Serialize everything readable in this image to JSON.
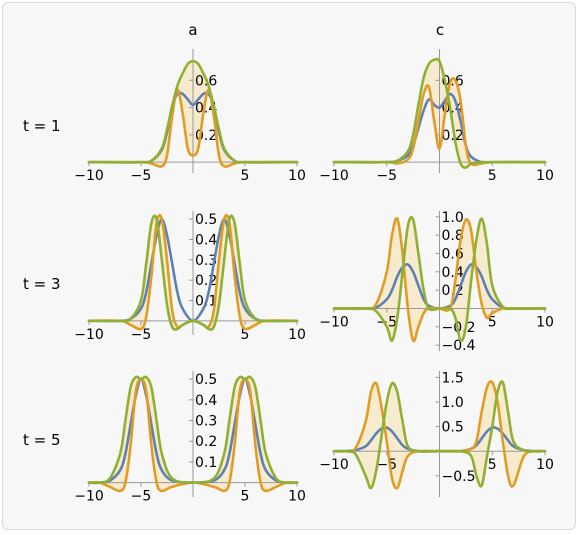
{
  "column_labels": [
    "a",
    "c"
  ],
  "row_labels": [
    "t = 1",
    "t = 3",
    "t = 5"
  ],
  "colors": {
    "blue": "#5e81b5",
    "orange": "#e19c24",
    "green": "#8fb032",
    "fill": "#f6e7c8",
    "axis": "#999999"
  },
  "chart_data": [
    {
      "type": "line",
      "panel": "a",
      "row": "t = 1",
      "xlim": [
        -10,
        10
      ],
      "ylim": [
        -0.05,
        0.8
      ],
      "xticks": [
        -10,
        -5,
        5,
        10
      ],
      "yticks": [
        0.2,
        0.4,
        0.6
      ],
      "xtick_labels": [
        "−10",
        "−5",
        "5",
        "10"
      ],
      "ytick_labels": [
        "0.2",
        "0.4",
        "0.6"
      ],
      "x": [
        -5,
        -4,
        -3,
        -2.5,
        -2,
        -1.5,
        -1,
        -0.5,
        0,
        0.5,
        1,
        1.5,
        2,
        2.5,
        3,
        4,
        5
      ],
      "series": [
        {
          "color": "blue",
          "values": [
            0.0,
            0.01,
            0.09,
            0.22,
            0.41,
            0.5,
            0.5,
            0.46,
            0.42,
            0.46,
            0.5,
            0.5,
            0.41,
            0.22,
            0.09,
            0.01,
            0.0
          ]
        },
        {
          "color": "orange",
          "values": [
            0.0,
            -0.01,
            -0.03,
            0.05,
            0.34,
            0.53,
            0.36,
            0.1,
            0.05,
            0.1,
            0.36,
            0.53,
            0.34,
            0.05,
            -0.03,
            -0.01,
            0.0
          ]
        },
        {
          "color": "green",
          "values": [
            0.0,
            0.01,
            0.1,
            0.24,
            0.41,
            0.56,
            0.65,
            0.72,
            0.74,
            0.72,
            0.65,
            0.56,
            0.41,
            0.24,
            0.1,
            0.01,
            0.0
          ]
        }
      ]
    },
    {
      "type": "line",
      "panel": "c",
      "row": "t = 1",
      "xlim": [
        -10,
        10
      ],
      "ylim": [
        -0.05,
        0.8
      ],
      "xticks": [
        -10,
        -5,
        5,
        10
      ],
      "yticks": [
        0.2,
        0.4,
        0.6
      ],
      "xtick_labels": [
        "−10",
        "−5",
        "5",
        "10"
      ],
      "ytick_labels": [
        "0.2",
        "0.4",
        "0.6"
      ],
      "x": [
        -5,
        -4,
        -3,
        -2.5,
        -2,
        -1.5,
        -1,
        -0.5,
        0,
        0.5,
        1,
        1.5,
        2,
        2.5,
        3,
        4,
        5
      ],
      "series": [
        {
          "color": "blue",
          "values": [
            0.0,
            0.01,
            0.05,
            0.12,
            0.25,
            0.38,
            0.46,
            0.42,
            0.4,
            0.45,
            0.5,
            0.45,
            0.3,
            0.12,
            0.04,
            0.0,
            0.0
          ]
        },
        {
          "color": "orange",
          "values": [
            0.0,
            -0.01,
            0.02,
            0.1,
            0.3,
            0.5,
            0.55,
            0.3,
            0.1,
            0.35,
            0.58,
            0.6,
            0.45,
            0.12,
            -0.01,
            -0.01,
            0.0
          ]
        },
        {
          "color": "green",
          "values": [
            0.0,
            0.01,
            0.08,
            0.2,
            0.42,
            0.62,
            0.72,
            0.75,
            0.74,
            0.6,
            0.4,
            0.15,
            -0.01,
            -0.04,
            -0.01,
            0.0,
            0.0
          ]
        }
      ]
    },
    {
      "type": "line",
      "panel": "a",
      "row": "t = 3",
      "xlim": [
        -10,
        10
      ],
      "ylim": [
        -0.05,
        0.52
      ],
      "xticks": [
        -10,
        -5,
        5,
        10
      ],
      "yticks": [
        0.1,
        0.2,
        0.3,
        0.4,
        0.5
      ],
      "xtick_labels": [
        "−10",
        "−5",
        "5",
        "10"
      ],
      "ytick_labels": [
        "0.1",
        "0.2",
        "0.3",
        "0.4",
        "0.5"
      ],
      "x": [
        -7,
        -6,
        -5,
        -4.5,
        -4,
        -3.5,
        -3,
        -2.5,
        -2,
        -1.5,
        -1,
        0,
        1,
        1.5,
        2,
        2.5,
        3,
        3.5,
        4,
        4.5,
        5,
        6,
        7
      ],
      "series": [
        {
          "color": "blue",
          "values": [
            0.0,
            0.01,
            0.06,
            0.14,
            0.28,
            0.42,
            0.5,
            0.42,
            0.28,
            0.14,
            0.06,
            0.0,
            0.06,
            0.14,
            0.28,
            0.42,
            0.5,
            0.42,
            0.28,
            0.14,
            0.06,
            0.01,
            0.0
          ]
        },
        {
          "color": "orange",
          "values": [
            0.0,
            -0.02,
            -0.04,
            0.02,
            0.22,
            0.48,
            0.5,
            0.3,
            0.05,
            -0.03,
            -0.02,
            0.0,
            -0.02,
            -0.03,
            0.05,
            0.3,
            0.5,
            0.48,
            0.22,
            0.02,
            -0.04,
            -0.02,
            0.0
          ]
        },
        {
          "color": "green",
          "values": [
            0.0,
            0.01,
            0.1,
            0.28,
            0.48,
            0.5,
            0.3,
            0.08,
            -0.03,
            -0.04,
            -0.02,
            0.0,
            -0.02,
            -0.04,
            -0.03,
            0.08,
            0.3,
            0.5,
            0.48,
            0.28,
            0.1,
            0.01,
            0.0
          ]
        }
      ]
    },
    {
      "type": "line",
      "panel": "c",
      "row": "t = 3",
      "xlim": [
        -10,
        10
      ],
      "ylim": [
        -0.42,
        1.02
      ],
      "xticks": [
        -10,
        -5,
        5,
        10
      ],
      "yticks": [
        -0.4,
        -0.2,
        0.2,
        0.4,
        0.6,
        0.8,
        1.0
      ],
      "xtick_labels": [
        "−10",
        "−5",
        "5",
        "10"
      ],
      "ytick_labels": [
        "−0.4",
        "−0.2",
        "0.2",
        "0.4",
        "0.6",
        "0.8",
        "1.0"
      ],
      "x": [
        -7,
        -6,
        -5,
        -4.5,
        -4,
        -3.5,
        -3,
        -2.5,
        -2,
        -1.5,
        -1,
        0,
        1,
        1.5,
        2,
        2.5,
        3,
        3.5,
        4,
        4.5,
        5,
        6,
        7
      ],
      "series": [
        {
          "color": "blue",
          "values": [
            0.0,
            0.01,
            0.1,
            0.2,
            0.35,
            0.45,
            0.48,
            0.4,
            0.25,
            0.1,
            0.03,
            0.0,
            0.03,
            0.1,
            0.25,
            0.4,
            0.48,
            0.45,
            0.35,
            0.2,
            0.1,
            0.01,
            0.0
          ]
        },
        {
          "color": "orange",
          "values": [
            0.0,
            0.05,
            0.4,
            0.8,
            0.98,
            0.6,
            0.0,
            -0.35,
            -0.2,
            -0.05,
            0.0,
            0.0,
            0.0,
            0.3,
            0.75,
            0.97,
            0.85,
            0.4,
            0.05,
            -0.1,
            -0.05,
            0.0,
            0.0
          ]
        },
        {
          "color": "green",
          "values": [
            0.0,
            -0.03,
            -0.2,
            -0.35,
            -0.1,
            0.4,
            0.9,
            0.97,
            0.6,
            0.2,
            0.0,
            0.0,
            0.0,
            -0.1,
            -0.35,
            -0.2,
            0.3,
            0.75,
            0.98,
            0.7,
            0.25,
            0.02,
            0.0
          ]
        }
      ]
    },
    {
      "type": "line",
      "panel": "a",
      "row": "t = 5",
      "xlim": [
        -10,
        10
      ],
      "ylim": [
        -0.05,
        0.52
      ],
      "xticks": [
        -10,
        -5,
        5,
        10
      ],
      "yticks": [
        0.1,
        0.2,
        0.3,
        0.4,
        0.5
      ],
      "xtick_labels": [
        "−10",
        "−5",
        "5",
        "10"
      ],
      "ytick_labels": [
        "0.1",
        "0.2",
        "0.3",
        "0.4",
        "0.5"
      ],
      "x": [
        -9,
        -8,
        -7,
        -6.5,
        -6,
        -5.5,
        -5,
        -4.5,
        -4,
        -3.5,
        -3,
        -2,
        0,
        2,
        3,
        3.5,
        4,
        4.5,
        5,
        5.5,
        6,
        6.5,
        7,
        8,
        9
      ],
      "series": [
        {
          "color": "blue",
          "values": [
            0.0,
            0.01,
            0.06,
            0.14,
            0.28,
            0.42,
            0.5,
            0.42,
            0.28,
            0.14,
            0.06,
            0.01,
            0.0,
            0.01,
            0.06,
            0.14,
            0.28,
            0.42,
            0.5,
            0.42,
            0.28,
            0.14,
            0.06,
            0.01,
            0.0
          ]
        },
        {
          "color": "orange",
          "values": [
            0.0,
            -0.02,
            -0.04,
            0.0,
            0.18,
            0.44,
            0.5,
            0.44,
            0.18,
            0.0,
            -0.04,
            -0.02,
            0.0,
            -0.02,
            -0.04,
            0.0,
            0.18,
            0.44,
            0.5,
            0.44,
            0.18,
            0.0,
            -0.04,
            -0.02,
            0.0
          ]
        },
        {
          "color": "green",
          "values": [
            0.0,
            0.02,
            0.14,
            0.3,
            0.46,
            0.51,
            0.5,
            0.51,
            0.46,
            0.3,
            0.14,
            0.02,
            0.0,
            0.02,
            0.14,
            0.3,
            0.46,
            0.51,
            0.5,
            0.51,
            0.46,
            0.3,
            0.14,
            0.02,
            0.0
          ]
        }
      ]
    },
    {
      "type": "line",
      "panel": "c",
      "row": "t = 5",
      "xlim": [
        -10,
        10
      ],
      "ylim": [
        -0.85,
        1.55
      ],
      "xticks": [
        -10,
        -5,
        5,
        10
      ],
      "yticks": [
        -0.5,
        0.5,
        1.0,
        1.5
      ],
      "xtick_labels": [
        "−10",
        "−5",
        "5",
        "10"
      ],
      "ytick_labels": [
        "−0.5",
        "0.5",
        "1.0",
        "1.5"
      ],
      "x": [
        -9,
        -8,
        -7,
        -6.5,
        -6,
        -5.5,
        -5,
        -4.5,
        -4,
        -3.5,
        -3,
        -2,
        0,
        2,
        3,
        3.5,
        4,
        4.5,
        5,
        5.5,
        6,
        6.5,
        7,
        8,
        9
      ],
      "series": [
        {
          "color": "blue",
          "values": [
            0.0,
            0.02,
            0.1,
            0.22,
            0.36,
            0.46,
            0.48,
            0.4,
            0.26,
            0.12,
            0.05,
            0.0,
            0.0,
            0.0,
            0.05,
            0.12,
            0.26,
            0.4,
            0.48,
            0.46,
            0.36,
            0.22,
            0.1,
            0.02,
            0.0
          ]
        },
        {
          "color": "orange",
          "values": [
            0.0,
            0.05,
            0.6,
            1.2,
            1.38,
            0.9,
            0.2,
            -0.55,
            -0.75,
            -0.4,
            -0.1,
            0.0,
            0.0,
            0.0,
            0.05,
            0.2,
            0.8,
            1.3,
            1.4,
            1.0,
            0.2,
            -0.5,
            -0.7,
            -0.1,
            0.0
          ]
        },
        {
          "color": "green",
          "values": [
            0.0,
            -0.05,
            -0.5,
            -0.75,
            -0.4,
            0.3,
            1.0,
            1.38,
            1.2,
            0.6,
            0.1,
            0.0,
            0.0,
            0.0,
            -0.1,
            -0.5,
            -0.7,
            -0.1,
            0.5,
            1.2,
            1.4,
            0.8,
            0.2,
            0.02,
            0.0
          ]
        }
      ]
    }
  ]
}
